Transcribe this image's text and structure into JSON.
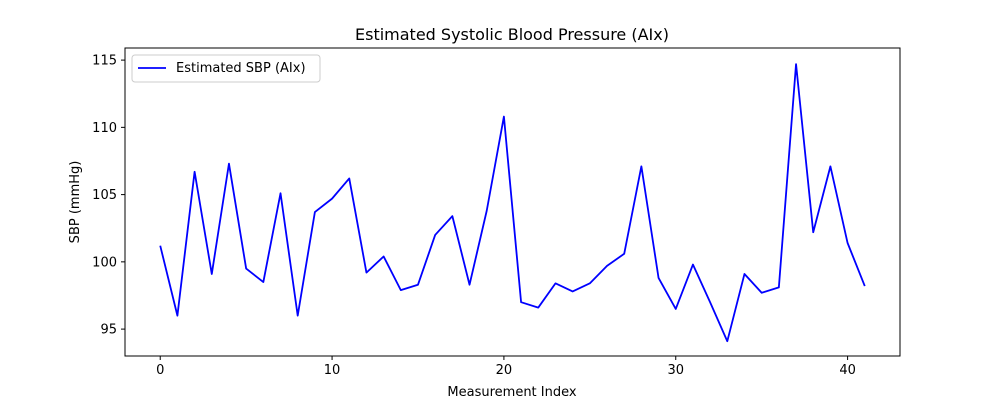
{
  "chart_data": {
    "type": "line",
    "title": "Estimated Systolic Blood Pressure (AIx)",
    "xlabel": "Measurement Index",
    "ylabel": "SBP (mmHg)",
    "xlim": [
      -2.05,
      43.05
    ],
    "ylim": [
      93.0,
      115.9
    ],
    "xticks": [
      0,
      10,
      20,
      30,
      40
    ],
    "yticks": [
      95,
      100,
      105,
      110,
      115
    ],
    "grid": false,
    "legend_position": "top-left",
    "series": [
      {
        "name": "Estimated SBP (AIx)",
        "color": "#0000ff",
        "x": [
          0,
          1,
          2,
          3,
          4,
          5,
          6,
          7,
          8,
          9,
          10,
          11,
          12,
          13,
          14,
          15,
          16,
          17,
          18,
          19,
          20,
          21,
          22,
          23,
          24,
          25,
          26,
          27,
          28,
          29,
          30,
          31,
          32,
          33,
          34,
          35,
          36,
          37,
          38,
          39,
          40,
          41
        ],
        "values": [
          101.2,
          96.0,
          106.7,
          99.1,
          107.3,
          99.5,
          98.5,
          105.1,
          96.0,
          103.7,
          104.7,
          106.2,
          99.2,
          100.4,
          97.9,
          98.3,
          102.0,
          103.4,
          98.3,
          103.8,
          110.8,
          97.0,
          96.6,
          98.4,
          97.8,
          98.4,
          99.7,
          100.6,
          107.1,
          98.8,
          96.5,
          99.8,
          97.0,
          94.1,
          99.1,
          97.7,
          98.1,
          114.7,
          102.2,
          107.1,
          101.4,
          98.2
        ]
      }
    ]
  }
}
